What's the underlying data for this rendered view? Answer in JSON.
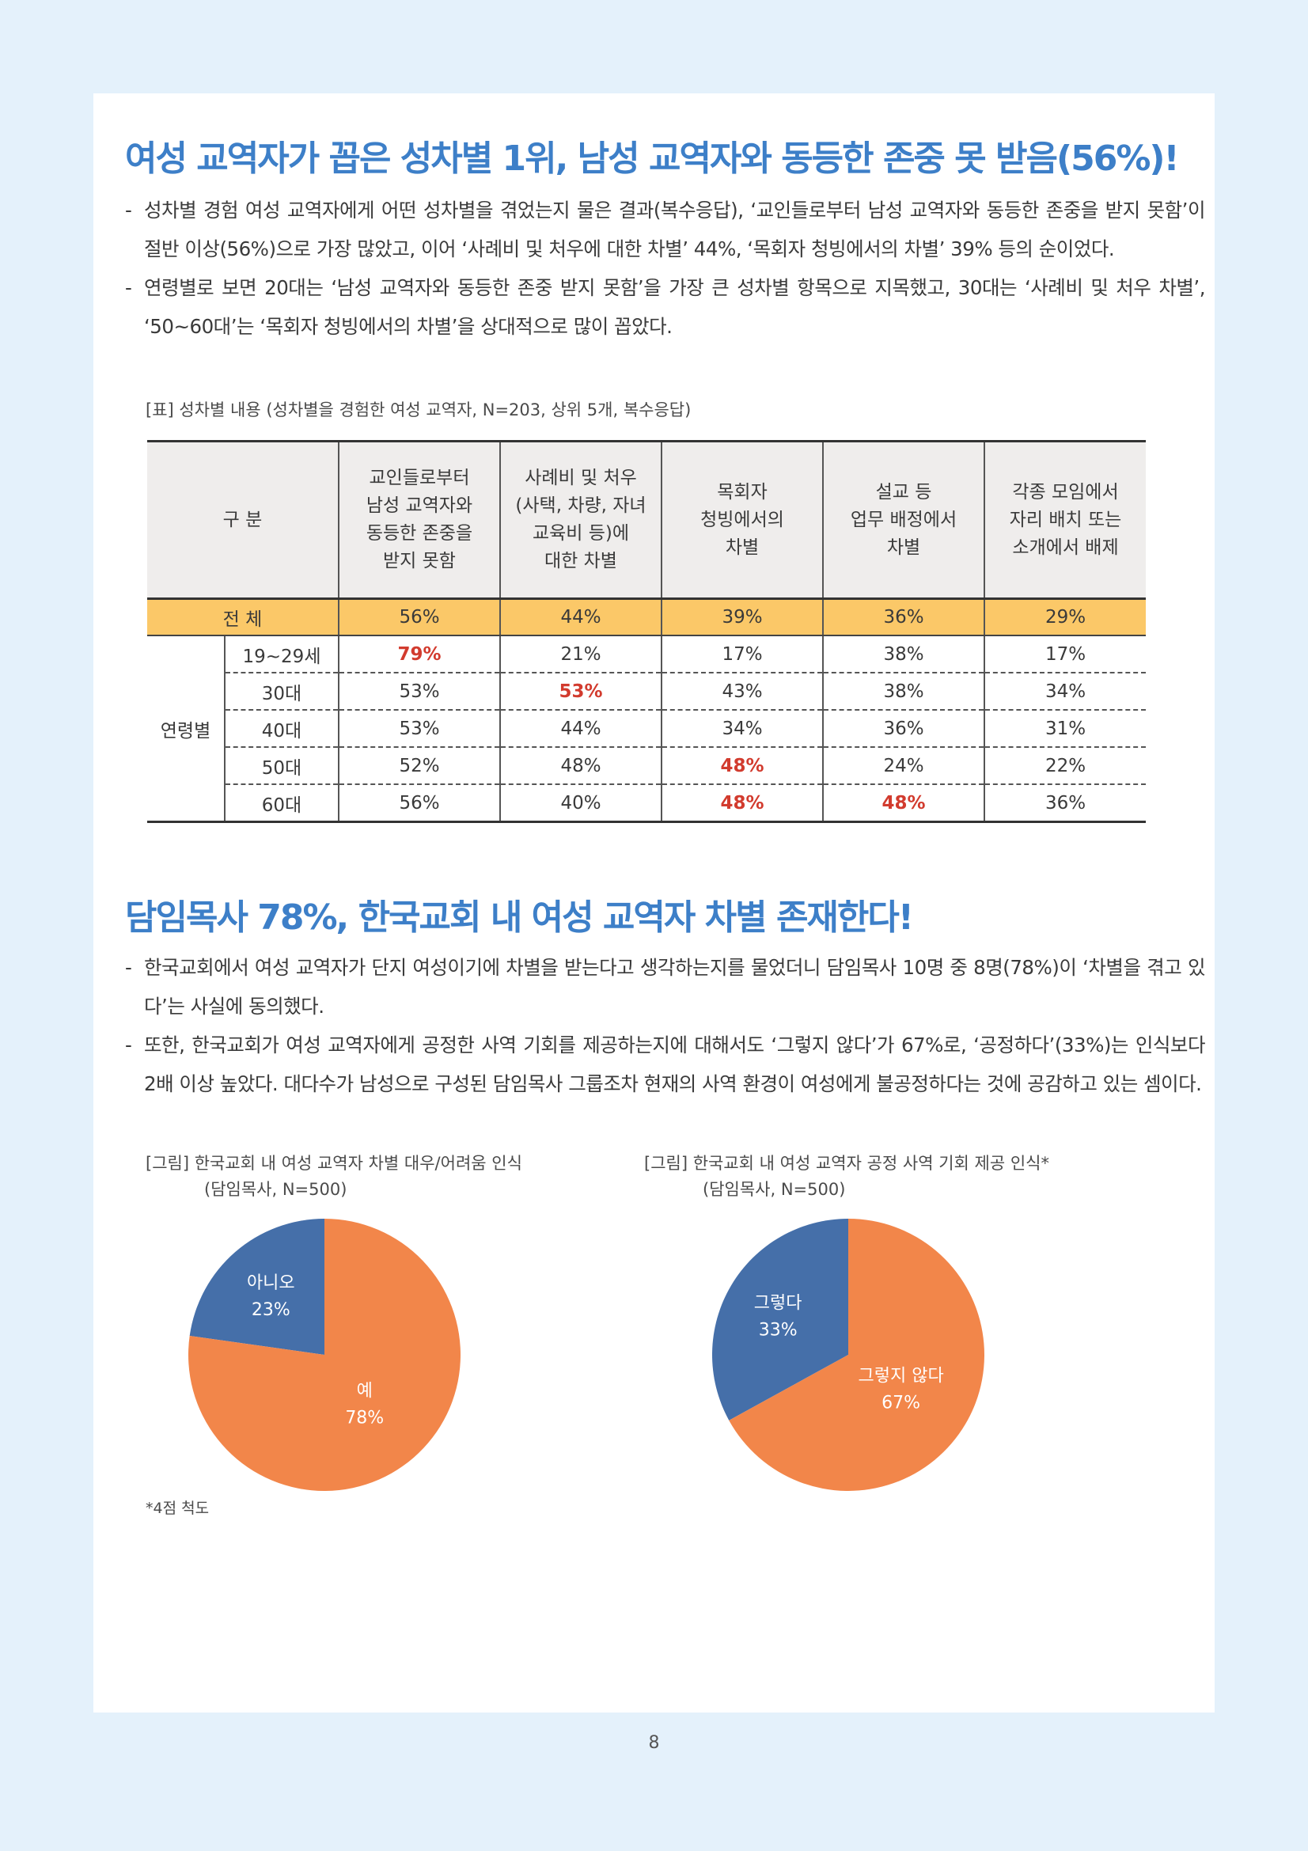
{
  "section1": {
    "heading": "여성 교역자가 꼽은 성차별 1위, 남성 교역자와 동등한 존중 못 받음(56%)!",
    "bullets": [
      "성차별 경험 여성 교역자에게 어떤 성차별을 겪었는지 물은 결과(복수응답), ‘교인들로부터 남성 교역자와 동등한 존중을 받지 못함’이 절반 이상(56%)으로 가장 많았고, 이어 ‘사례비 및 처우에 대한 차별’ 44%, ‘목회자 청빙에서의 차별’ 39% 등의 순이었다.",
      "연령별로 보면 20대는 ‘남성 교역자와 동등한 존중 받지 못함’을 가장 큰 성차별 항목으로 지목했고, 30대는 ‘사례비 및 처우 차별’, ‘50~60대’는 ‘목회자 청빙에서의 차별’을 상대적으로 많이 꼽았다."
    ],
    "table_caption": "[표] 성차별 내용 (성차별을 경험한 여성 교역자, N=203, 상위 5개, 복수응답)",
    "table": {
      "corner": "구 분",
      "headers": [
        [
          "교인들로부터",
          "남성 교역자와",
          "동등한 존중을",
          "받지 못함"
        ],
        [
          "사례비 및 처우",
          "(사택, 차량, 자녀",
          "교육비 등)에",
          "대한 차별"
        ],
        [
          "목회자",
          "청빙에서의",
          "차별"
        ],
        [
          "설교 등",
          "업무 배정에서",
          "차별"
        ],
        [
          "각종 모임에서",
          "자리 배치 또는",
          "소개에서 배제"
        ]
      ],
      "total_label": "전 체",
      "total": [
        "56%",
        "44%",
        "39%",
        "36%",
        "29%"
      ],
      "group_label": "연령별",
      "rows": [
        {
          "label": "19~29세",
          "values": [
            "79%",
            "21%",
            "17%",
            "38%",
            "17%"
          ]
        },
        {
          "label": "30대",
          "values": [
            "53%",
            "53%",
            "43%",
            "38%",
            "34%"
          ]
        },
        {
          "label": "40대",
          "values": [
            "53%",
            "44%",
            "34%",
            "36%",
            "31%"
          ]
        },
        {
          "label": "50대",
          "values": [
            "52%",
            "48%",
            "48%",
            "24%",
            "22%"
          ]
        },
        {
          "label": "60대",
          "values": [
            "56%",
            "40%",
            "48%",
            "48%",
            "36%"
          ]
        }
      ],
      "highlight_color": "#d23b2e",
      "total_row_color": "#fbc868"
    }
  },
  "section2": {
    "heading": "담임목사 78%, 한국교회 내 여성 교역자 차별 존재한다!",
    "bullets": [
      "한국교회에서 여성 교역자가 단지 여성이기에 차별을 받는다고 생각하는지를 물었더니 담임목사 10명 중 8명(78%)이 ‘차별을 겪고 있다’는 사실에 동의했다.",
      "또한, 한국교회가 여성 교역자에게 공정한 사역 기회를 제공하는지에 대해서도 ‘그렇지 않다’가 67%로, ‘공정하다’(33%)는 인식보다 2배 이상 높았다. 대다수가 남성으로 구성된 담임목사 그룹조차 현재의 사역 환경이 여성에게 불공정하다는 것에 공감하고 있는 셈이다."
    ]
  },
  "chart_data": [
    {
      "type": "pie",
      "title": "[그림] 한국교회 내 여성 교역자 차별 대우/어려움 인식",
      "subtitle": "(담임목사, N=500)",
      "slices": [
        {
          "label": "아니오",
          "value": 23,
          "display": "23%",
          "color": "#456fa9"
        },
        {
          "label": "예",
          "value": 78,
          "display": "78%",
          "color": "#f2864a"
        }
      ]
    },
    {
      "type": "pie",
      "title": "[그림] 한국교회 내 여성 교역자 공정 사역 기회 제공 인식*",
      "subtitle": "(담임목사, N=500)",
      "slices": [
        {
          "label": "그렇다",
          "value": 33,
          "display": "33%",
          "color": "#456fa9"
        },
        {
          "label": "그렇지 않다",
          "value": 67,
          "display": "67%",
          "color": "#f2864a"
        }
      ]
    }
  ],
  "footnote": "*4점 척도",
  "page_number": "8"
}
